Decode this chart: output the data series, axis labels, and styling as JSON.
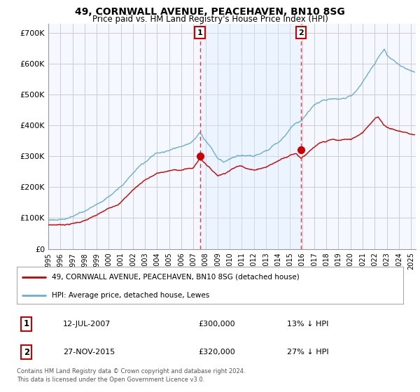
{
  "title_line1": "49, CORNWALL AVENUE, PEACEHAVEN, BN10 8SG",
  "title_line2": "Price paid vs. HM Land Registry's House Price Index (HPI)",
  "ylabel_ticks": [
    "£0",
    "£100K",
    "£200K",
    "£300K",
    "£400K",
    "£500K",
    "£600K",
    "£700K"
  ],
  "ytick_vals": [
    0,
    100000,
    200000,
    300000,
    400000,
    500000,
    600000,
    700000
  ],
  "ylim": [
    0,
    730000
  ],
  "xlim_start": 1995.0,
  "xlim_end": 2025.4,
  "sale1_x": 2007.54,
  "sale1_y": 300000,
  "sale2_x": 2015.92,
  "sale2_y": 320000,
  "hpi_color": "#6baed6",
  "price_color": "#cc0000",
  "vline_color": "#ee3333",
  "shade_color": "#ddeeff",
  "grid_color": "#cccccc",
  "legend_label1": "49, CORNWALL AVENUE, PEACEHAVEN, BN10 8SG (detached house)",
  "legend_label2": "HPI: Average price, detached house, Lewes",
  "annotation1_date": "12-JUL-2007",
  "annotation1_price": "£300,000",
  "annotation1_hpi": "13% ↓ HPI",
  "annotation2_date": "27-NOV-2015",
  "annotation2_price": "£320,000",
  "annotation2_hpi": "27% ↓ HPI",
  "footer": "Contains HM Land Registry data © Crown copyright and database right 2024.\nThis data is licensed under the Open Government Licence v3.0.",
  "bg_color": "#ffffff",
  "plot_bg_color": "#f5f9ff"
}
